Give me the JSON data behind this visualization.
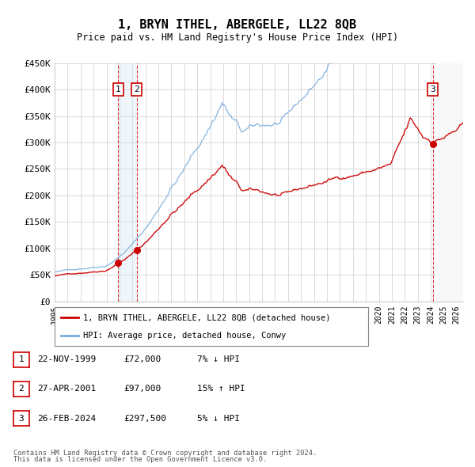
{
  "title": "1, BRYN ITHEL, ABERGELE, LL22 8QB",
  "subtitle": "Price paid vs. HM Land Registry's House Price Index (HPI)",
  "legend_line1": "1, BRYN ITHEL, ABERGELE, LL22 8QB (detached house)",
  "legend_line2": "HPI: Average price, detached house, Conwy",
  "transactions": [
    {
      "num": 1,
      "date": "22-NOV-1999",
      "price": 72000,
      "pct": "7%",
      "dir": "↓",
      "hpi": "HPI"
    },
    {
      "num": 2,
      "date": "27-APR-2001",
      "price": 97000,
      "pct": "15%",
      "dir": "↑",
      "hpi": "HPI"
    },
    {
      "num": 3,
      "date": "26-FEB-2024",
      "price": 297500,
      "pct": "5%",
      "dir": "↓",
      "hpi": "HPI"
    }
  ],
  "footnote1": "Contains HM Land Registry data © Crown copyright and database right 2024.",
  "footnote2": "This data is licensed under the Open Government Licence v3.0.",
  "xmin": 1995.0,
  "xmax": 2026.5,
  "ymin": 0,
  "ymax": 450000,
  "sale1_x": 1999.9,
  "sale1_y": 72000,
  "sale2_x": 2001.33,
  "sale2_y": 97000,
  "sale3_x": 2024.15,
  "sale3_y": 297500,
  "hatch_start": 2024.5,
  "line_color_property": "#cc0000",
  "line_color_hpi": "#7aaddb",
  "band_color": "#d0e8f5",
  "background_color": "#ffffff",
  "grid_color": "#cccccc",
  "yticks": [
    0,
    50000,
    100000,
    150000,
    200000,
    250000,
    300000,
    350000,
    400000,
    450000
  ],
  "ytick_labels": [
    "£0",
    "£50K",
    "£100K",
    "£150K",
    "£200K",
    "£250K",
    "£300K",
    "£350K",
    "£400K",
    "£450K"
  ]
}
